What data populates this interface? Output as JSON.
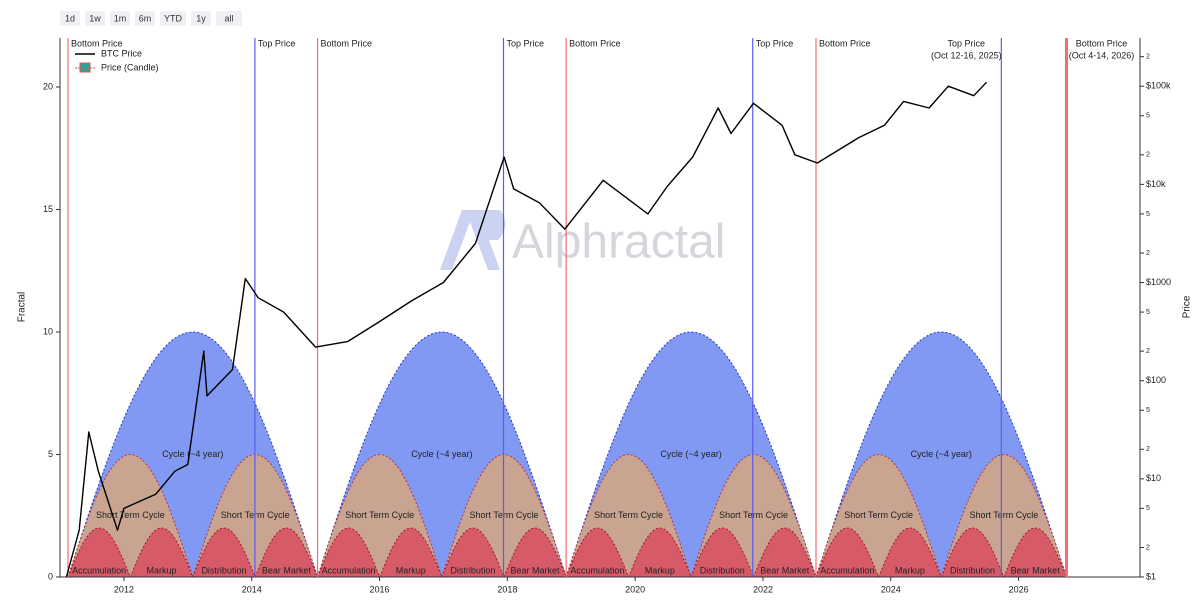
{
  "range_buttons": [
    "1d",
    "1w",
    "1m",
    "6m",
    "YTD",
    "1y",
    "all"
  ],
  "watermark": "Alphractal",
  "chart_data": {
    "type": "line",
    "x_label": "",
    "y_label": "Fractal",
    "y2_label": "Price",
    "xlim": [
      2011,
      2027.9
    ],
    "xticks": [
      2012,
      2014,
      2016,
      2018,
      2020,
      2022,
      2024,
      2026
    ],
    "ylim": [
      0,
      22
    ],
    "yticks": [
      0,
      5,
      10,
      15,
      20
    ],
    "y2_log": true,
    "y2lim": [
      1,
      310000
    ],
    "y2ticks": [
      {
        "value": 1,
        "label": "$1"
      },
      2,
      5,
      {
        "value": 10,
        "label": "$10"
      },
      {
        "value": 20,
        "label": "2"
      },
      {
        "value": 50,
        "label": "5"
      },
      {
        "value": 100,
        "label": "$100"
      },
      {
        "value": 200,
        "label": "2"
      },
      {
        "value": 500,
        "label": "5"
      },
      {
        "value": 1000,
        "label": "$1000"
      },
      {
        "value": 2000,
        "label": "2"
      },
      {
        "value": 5000,
        "label": "5"
      },
      {
        "value": 10000,
        "label": "$10k"
      },
      {
        "value": 20000,
        "label": "2"
      },
      {
        "value": 50000,
        "label": "5"
      },
      {
        "value": 100000,
        "label": "$100k"
      },
      {
        "value": 200000,
        "label": "2"
      }
    ],
    "series": [
      {
        "name": "BTC Price",
        "color": "#000000",
        "axis": "y2",
        "x": [
          2011.1,
          2011.3,
          2011.45,
          2011.6,
          2011.9,
          2012.0,
          2012.5,
          2012.8,
          2013.0,
          2013.25,
          2013.3,
          2013.7,
          2013.9,
          2014.1,
          2014.5,
          2015.0,
          2015.5,
          2016.0,
          2016.5,
          2017.0,
          2017.5,
          2017.95,
          2018.1,
          2018.5,
          2018.9,
          2019.5,
          2019.9,
          2020.2,
          2020.5,
          2020.9,
          2021.3,
          2021.5,
          2021.85,
          2022.3,
          2022.5,
          2022.85,
          2023.5,
          2023.9,
          2024.2,
          2024.6,
          2024.9,
          2025.3,
          2025.5
        ],
        "values": [
          1,
          3,
          30,
          12,
          3,
          5,
          7,
          12,
          14,
          200,
          70,
          130,
          1100,
          700,
          500,
          220,
          250,
          400,
          650,
          1000,
          2500,
          19000,
          9000,
          6500,
          3500,
          11000,
          7000,
          5000,
          9500,
          19000,
          60000,
          33000,
          67000,
          40000,
          20000,
          16500,
          30000,
          40000,
          70000,
          60000,
          100000,
          80000,
          110000
        ]
      }
    ],
    "candle_legend": "Price (Candle)",
    "candle_colors": [
      "#26a69a",
      "#ef5350"
    ],
    "cycle_bounds": [
      2011.125,
      2015.03,
      2018.92,
      2022.83,
      2026.75
    ],
    "waves": [
      {
        "label": "Cycle (~4 year)",
        "peak": 10,
        "per_cycle": 1,
        "fill": "#8199f2",
        "stroke": "#1f35c8"
      },
      {
        "label": "Short Term Cycle",
        "peak": 5,
        "per_cycle": 2,
        "fill": "#c9a491",
        "stroke": "#c0303a"
      },
      {
        "labels": [
          "Accumulation",
          "Markup",
          "Distribution",
          "Bear Market"
        ],
        "peak": 2,
        "per_cycle": 4,
        "fill": "#d65a68",
        "stroke": "#a01824"
      }
    ],
    "bottom_price": {
      "color": "#f26d6d",
      "x": [
        2011.125,
        2015.03,
        2018.92,
        2022.83,
        2026.75
      ],
      "labels": [
        "Bottom Price",
        "Bottom Price",
        "Bottom Price",
        "Bottom Price",
        "Bottom Price"
      ],
      "notes": [
        null,
        null,
        null,
        null,
        "(Oct 4-14, 2026)"
      ]
    },
    "top_price": {
      "color": "#5b5bf0",
      "x": [
        2014.05,
        2017.94,
        2021.84,
        2025.73
      ],
      "labels": [
        "Top Price",
        "Top Price",
        "Top Price",
        "Top Price"
      ],
      "notes": [
        null,
        null,
        null,
        "(Oct 12-16, 2025)"
      ]
    }
  }
}
